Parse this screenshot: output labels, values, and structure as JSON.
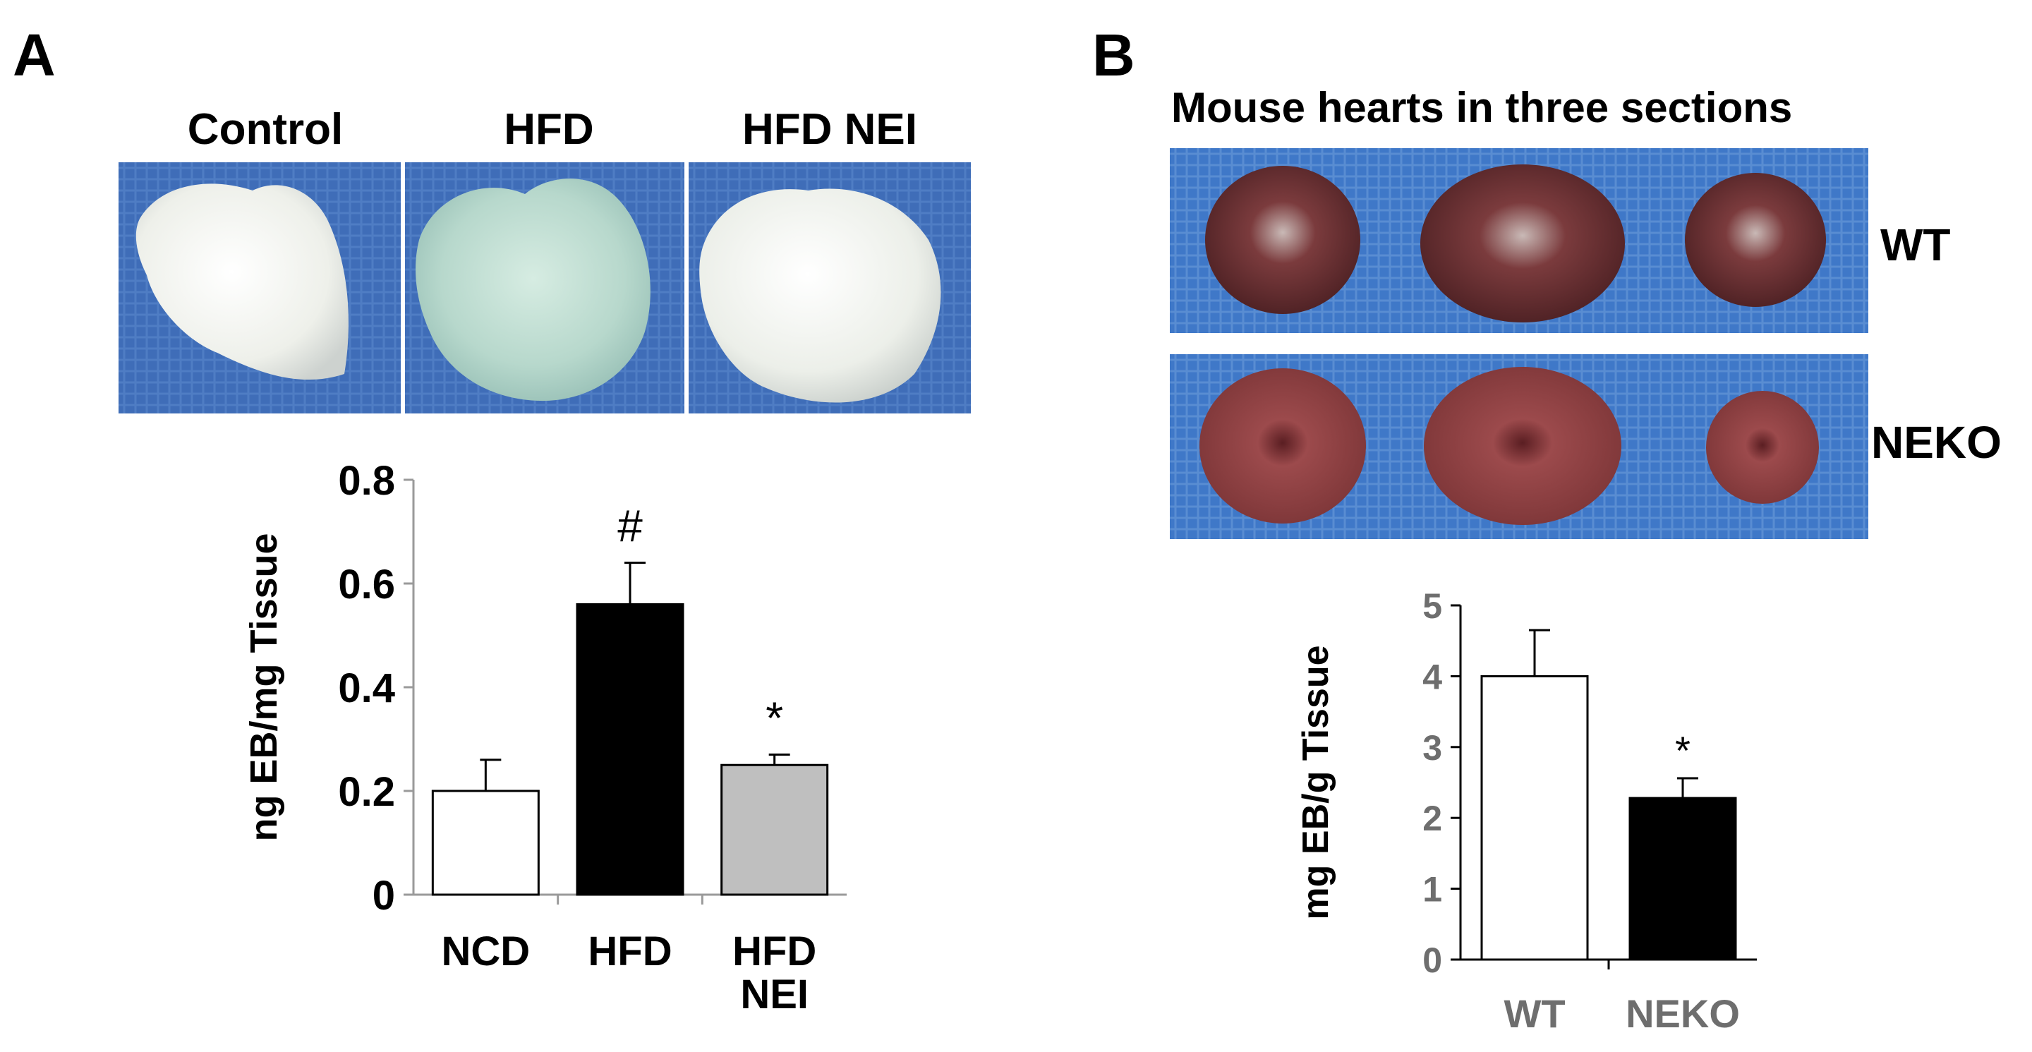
{
  "panel_a": {
    "letter": "A",
    "image_labels": [
      "Control",
      "HFD",
      "HFD NEI"
    ]
  },
  "panel_b": {
    "letter": "B",
    "title": "Mouse hearts in three sections",
    "row_labels": [
      "WT",
      "NEKO"
    ]
  },
  "colors": {
    "photo_background": "#3f6db8",
    "tissue_white": "#f2f3ee",
    "tissue_blue": "#b9d9cf",
    "heart_section": "#6b2a2c",
    "bar_black": "#000000",
    "bar_white": "#ffffff",
    "bar_gray": "#bfbfbf"
  },
  "chart_data": [
    {
      "type": "bar",
      "categories": [
        "NCD",
        "HFD",
        "HFD\nNEI"
      ],
      "values": [
        0.2,
        0.56,
        0.25
      ],
      "errors": [
        0.06,
        0.08,
        0.02
      ],
      "bar_colors": [
        "#ffffff",
        "#000000",
        "#bfbfbf"
      ],
      "annotations": [
        "",
        "#",
        "*"
      ],
      "ylabel": "ng EB/mg Tissue",
      "xlabel": "",
      "ylim": [
        0,
        0.8
      ],
      "yticks": [
        "0",
        "0.2",
        "0.4",
        "0.6",
        "0.8"
      ],
      "grid": false
    },
    {
      "type": "bar",
      "categories": [
        "WT",
        "NEKO"
      ],
      "values": [
        4.0,
        2.28
      ],
      "errors": [
        0.65,
        0.28
      ],
      "bar_colors": [
        "#ffffff",
        "#000000"
      ],
      "annotations": [
        "",
        "*"
      ],
      "ylabel": "mg EB/g Tissue",
      "xlabel": "",
      "ylim": [
        0,
        5
      ],
      "yticks": [
        "0",
        "1",
        "2",
        "3",
        "4",
        "5"
      ],
      "grid": false
    }
  ]
}
